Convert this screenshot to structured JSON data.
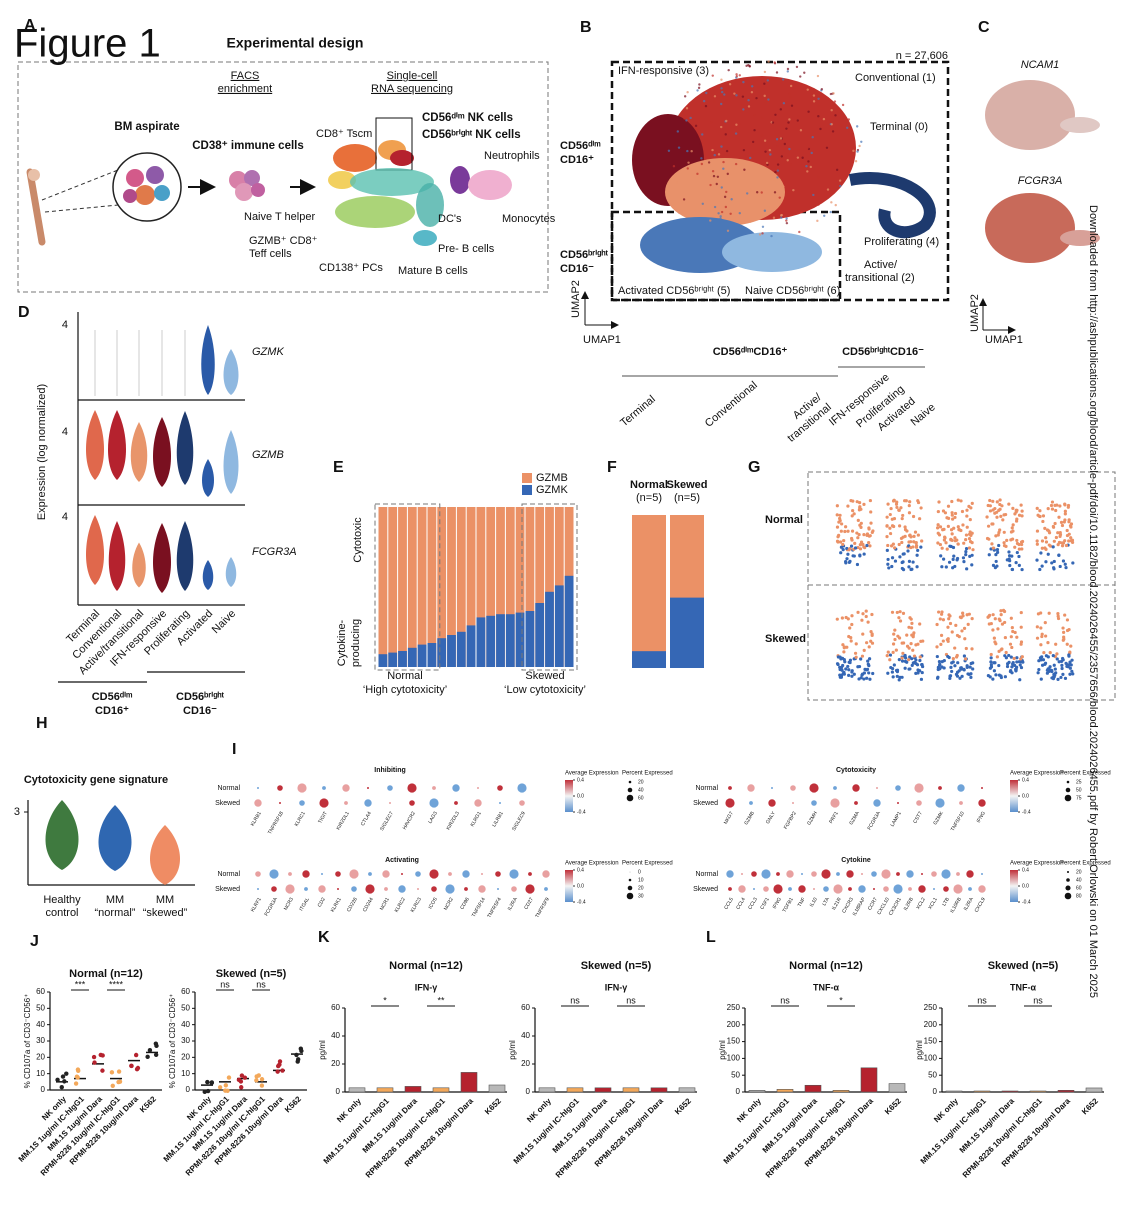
{
  "figure_label": "Figure 1",
  "side_note": "Downloaded from http://ashpublications.org/blood/article-pdf/doi/10.1182/blood.2024026455/2357656/blood.2024026455.pdf by Robert Orlowski on 01 March 2025",
  "panel_letters": [
    "A",
    "B",
    "C",
    "D",
    "E",
    "F",
    "G",
    "H",
    "I",
    "J",
    "K",
    "L"
  ],
  "a": {
    "title": "Experimental design",
    "facs": [
      "FACS",
      "enrichment"
    ],
    "scrna": [
      "Single-cell",
      "RNA sequencing"
    ],
    "labels": [
      "BM aspirate",
      "CD38⁺ immune cells",
      "CD56ᵈⁱᵐ NK cells",
      "CD56ᵇʳⁱᵍʰᵗ NK cells",
      "CD8⁺ Tscm",
      "Neutrophils",
      "Naive T helper",
      "GZMB⁺ CD8⁺",
      "Teff cells",
      "DC's",
      "Monocytes",
      "Pre- B cells",
      "CD138⁺ PCs",
      "Mature B cells"
    ]
  },
  "b": {
    "labels": [
      "n = 27,606",
      "IFN-responsive (3)",
      "Conventional (1)",
      "Terminal (0)",
      "CD56ᵈⁱᵐ",
      "CD16⁺",
      "CD56ᵇʳⁱᵍʰᵗ",
      "CD16⁻",
      "Proliferating (4)",
      "Active/",
      "transitional (2)",
      "Activated CD56ᵇʳⁱᵍʰᵗ (5)",
      "Naive CD56ᵇʳⁱᵍʰᵗ (6)",
      "UMAP2",
      "UMAP1"
    ],
    "tree": {
      "groups": [
        "CD56ᵈⁱᵐCD16⁺",
        "CD56ᵇʳⁱᵍʰᵗCD16⁻"
      ],
      "leaves": [
        "Terminal",
        "Conventional",
        "Active/",
        "transitional",
        "IFN-responsive",
        "Proliferating",
        "Activated",
        "Naive"
      ]
    }
  },
  "c": {
    "genes": [
      "NCAM1",
      "FCGR3A"
    ],
    "umap_y": "UMAP2",
    "umap_x": "UMAP1"
  },
  "d": {
    "max_label": "4",
    "genes": [
      "GZMK",
      "GZMB",
      "FCGR3A"
    ],
    "ylabel": "Expression (log normalized)",
    "categories": [
      "Terminal",
      "Conventional",
      "Active/transitional",
      "IFN-responsive",
      "Proliferating",
      "Activated",
      "Naive"
    ],
    "colors": [
      "#e0684c",
      "#b5222e",
      "#e8956b",
      "#7a1020",
      "#1e3a6e",
      "#2a5aa8",
      "#8fb8e0"
    ],
    "groups": [
      [
        "CD56ᵈⁱᵐ",
        "CD16⁺"
      ],
      [
        "CD56ᵇʳⁱᵍʰᵗ",
        "CD16⁻"
      ]
    ]
  },
  "e": {
    "legend": [
      "GZMB",
      "GZMK"
    ],
    "colors": [
      "#eb9166",
      "#3567b5"
    ],
    "ylabel_top": "Cytotoxic",
    "ylabel_bottom": [
      "Cytokine-",
      "producing"
    ],
    "groups": [
      [
        "Normal",
        "‘High cytotoxicity’"
      ],
      [
        "Skewed",
        "‘Low cytotoxicity’"
      ]
    ],
    "ylim": [
      0,
      100
    ],
    "gzmk_percent": [
      8,
      9,
      10,
      12,
      14,
      15,
      18,
      20,
      22,
      26,
      31,
      32,
      33,
      33,
      34,
      35,
      40,
      47,
      51,
      57
    ]
  },
  "f": {
    "groups": [
      [
        "Normal",
        "(n=5)"
      ],
      [
        "Skewed",
        "(n=5)"
      ]
    ],
    "ylim": [
      0,
      100
    ],
    "gzmk_percent": [
      11,
      46
    ]
  },
  "g": {
    "rows": [
      "Normal",
      "Skewed"
    ]
  },
  "h": {
    "title": "Cytotoxicity gene signature",
    "yticks": [
      3
    ],
    "groups": [
      [
        "Healthy",
        "control"
      ],
      [
        "MM",
        "“normal”"
      ],
      [
        "MM",
        "“skewed”"
      ]
    ],
    "colors": [
      "#3f7a3f",
      "#2f67b1",
      "#ef8c64"
    ]
  },
  "i": {
    "rows": [
      "Normal",
      "Skewed"
    ],
    "avg_label": "Average Expression",
    "pct_label": "Percent Expressed",
    "plots": [
      {
        "title": "Inhibiting",
        "genes": [
          "KLRB1",
          "TNFRSF18",
          "KLRC1",
          "TIGIT",
          "KIR2DL1",
          "CTLA4",
          "SIGLEC7",
          "HAVCR2",
          "LAG3",
          "KIR2DL3",
          "KLRG1",
          "LILRB1",
          "SIGLEC9"
        ],
        "avg_ticks": [
          0.4,
          {
            "value": 0,
            "label": "0.0"
          },
          -0.4
        ],
        "pct_ticks": [
          20,
          40,
          60
        ]
      },
      {
        "title": "Cytotoxicity",
        "genes": [
          "NKG7",
          "GZMB",
          "GNLY",
          "FGFBP2",
          "GZMH",
          "PRF1",
          "GZMA",
          "FCGR3A",
          "LAMP1",
          "CST7",
          "GZMK",
          "TNFSF10",
          "IFNG"
        ],
        "avg_ticks": [
          0.4,
          {
            "value": 0,
            "label": "0.0"
          },
          -0.4
        ],
        "pct_ticks": [
          25,
          50,
          75
        ]
      },
      {
        "title": "Activating",
        "genes": [
          "KLRF1",
          "FCGR3A",
          "NCR3",
          "ITGAL",
          "CD2",
          "KLRK1",
          "CD226",
          "CD244",
          "NCR1",
          "KLRC2",
          "KLRC3",
          "ICOS",
          "NCR2",
          "CD96",
          "TNFSF14",
          "TNFRSF4",
          "IL2RA",
          "CD27",
          "TNFRSF9"
        ],
        "avg_ticks": [
          0.4,
          {
            "value": 0,
            "label": "0.0"
          },
          -0.4
        ],
        "pct_ticks": [
          0,
          10,
          20,
          30
        ]
      },
      {
        "title": "Cytokine",
        "genes": [
          "CCL5",
          "CCL4",
          "CCL3",
          "CSF1",
          "IFNG",
          "TGFB1",
          "TNF",
          "IL10",
          "LTA",
          "IL21R",
          "CXCR3",
          "IL18RAP",
          "CCR7",
          "CXCL10",
          "CX3CR1",
          "IL2RB",
          "XCL2",
          "XCL1",
          "LTB",
          "IL10RB",
          "IL2RA",
          "CXCL9"
        ],
        "avg_ticks": [
          0.4,
          {
            "value": 0,
            "label": "0.0"
          },
          -0.4
        ],
        "pct_ticks": [
          20,
          40,
          60,
          80
        ]
      }
    ]
  },
  "j": {
    "ylabel": "% CD107a of CD3⁻CD56⁺",
    "categories": [
      "NK only",
      "MM.1S 1ug/ml IC-hIgG1",
      "MM.1S 1ug/ml Dara",
      "RPMI-8226 10ug/ml IC-hIgG1",
      "RPMI-8226 10ug/ml Dara",
      "K562"
    ],
    "colors": [
      "#222222",
      "#f3a85a",
      "#b5222e",
      "#f3a85a",
      "#b5222e",
      "#222222"
    ],
    "plots": [
      {
        "title": "Normal (n=12)",
        "ylim": [
          0,
          60
        ],
        "yticks": [
          0,
          10,
          20,
          30,
          40,
          50,
          60
        ],
        "sig": [
          "***",
          "****"
        ],
        "values": [
          5,
          7,
          16,
          7,
          18,
          23
        ]
      },
      {
        "title": "Skewed (n=5)",
        "ylim": [
          0,
          60
        ],
        "yticks": [
          0,
          10,
          20,
          30,
          40,
          50,
          60
        ],
        "sig": [
          "ns",
          "ns"
        ],
        "values": [
          3,
          5,
          7,
          5,
          12,
          22
        ]
      }
    ]
  },
  "k": {
    "ylabel": "pg/ml",
    "analyte": "IFN-γ",
    "categories": [
      "NK only",
      "MM.1S 1ug/ml IC-hIgG1",
      "MM.1S 1ug/ml Dara",
      "RPMI-8226 10ug/ml IC-hIgG1",
      "RPMI-8226 10ug/ml Dara",
      "K652"
    ],
    "colors": [
      "#b8b8b8",
      "#f3a85a",
      "#b5222e",
      "#f3a85a",
      "#b5222e",
      "#b8b8b8"
    ],
    "plots": [
      {
        "title": "Normal (n=12)",
        "ylim": [
          0,
          60
        ],
        "yticks": [
          0,
          20,
          40,
          60
        ],
        "sig": [
          "*",
          "**"
        ],
        "values": [
          3,
          3,
          4,
          3,
          14,
          5
        ]
      },
      {
        "title": "Skewed (n=5)",
        "ylim": [
          0,
          60
        ],
        "yticks": [
          0,
          20,
          40,
          60
        ],
        "sig": [
          "ns",
          "ns"
        ],
        "values": [
          3,
          3,
          3,
          3,
          3,
          3
        ]
      }
    ]
  },
  "l": {
    "ylabel": "pg/ml",
    "analyte": "TNF-α",
    "categories": [
      "NK only",
      "MM.1S 1ug/ml IC-hIgG1",
      "MM.1S 1ug/ml Dara",
      "RPMI-8226 10ug/ml IC-hIgG1",
      "RPMI-8226 10ug/ml Dara",
      "K652"
    ],
    "colors": [
      "#b8b8b8",
      "#f3a85a",
      "#b5222e",
      "#f3a85a",
      "#b5222e",
      "#b8b8b8"
    ],
    "plots": [
      {
        "title": "Normal (n=12)",
        "ylim": [
          0,
          250
        ],
        "yticks": [
          0,
          50,
          100,
          150,
          200,
          250
        ],
        "sig": [
          "ns",
          "*"
        ],
        "values": [
          5,
          8,
          20,
          5,
          72,
          25
        ]
      },
      {
        "title": "Skewed (n=5)",
        "ylim": [
          0,
          250
        ],
        "yticks": [
          0,
          50,
          100,
          150,
          200,
          250
        ],
        "sig": [
          "ns",
          "ns"
        ],
        "values": [
          3,
          3,
          3,
          3,
          5,
          12
        ]
      }
    ]
  }
}
